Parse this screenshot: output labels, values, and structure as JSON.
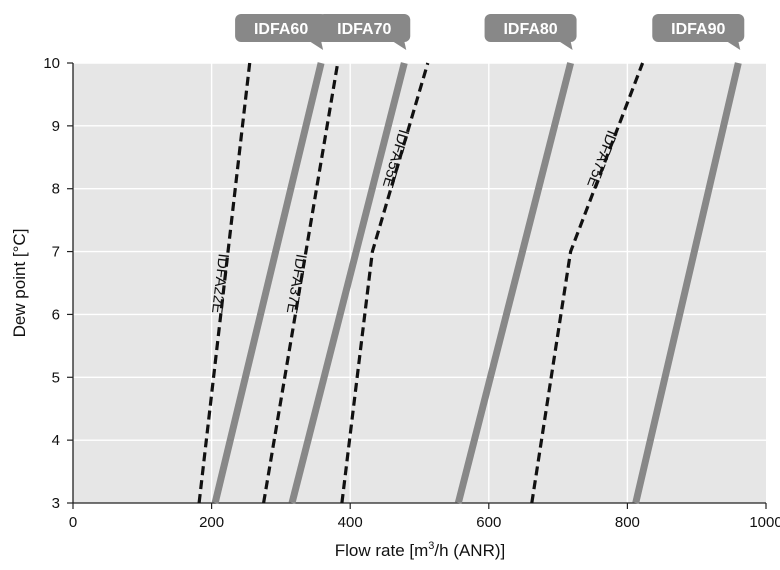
{
  "chart_data": {
    "type": "line",
    "xlabel_prefix": "Flow rate [m",
    "xlabel_sup": "3",
    "xlabel_suffix": "/h (ANR)]",
    "ylabel": "Dew point [°C]",
    "xlim": [
      0,
      1000
    ],
    "ylim": [
      3,
      10
    ],
    "xticks": [
      0,
      200,
      400,
      600,
      800,
      1000
    ],
    "yticks": [
      3,
      4,
      5,
      6,
      7,
      8,
      9,
      10
    ],
    "grid": true,
    "plot_background": "#e6e6e6",
    "solid_color": "#888888",
    "dashed_color": "#111111",
    "series": [
      {
        "name": "IDFA22E",
        "style": "dashed",
        "points": [
          [
            182,
            3
          ],
          [
            255,
            10
          ]
        ]
      },
      {
        "name": "IDFA37E",
        "style": "dashed",
        "points": [
          [
            275,
            3
          ],
          [
            382,
            10
          ]
        ]
      },
      {
        "name": "IDFA55E",
        "style": "dashed",
        "points": [
          [
            388,
            3
          ],
          [
            432,
            7
          ],
          [
            512,
            10
          ]
        ]
      },
      {
        "name": "IDFA75E",
        "style": "dashed",
        "points": [
          [
            662,
            3
          ],
          [
            718,
            7
          ],
          [
            822,
            10
          ]
        ]
      },
      {
        "name": "IDFA60",
        "style": "solid",
        "points": [
          [
            205,
            3
          ],
          [
            358,
            10
          ]
        ]
      },
      {
        "name": "IDFA70",
        "style": "solid",
        "points": [
          [
            316,
            3
          ],
          [
            478,
            10
          ]
        ]
      },
      {
        "name": "IDFA80",
        "style": "solid",
        "points": [
          [
            556,
            3
          ],
          [
            718,
            10
          ]
        ]
      },
      {
        "name": "IDFA90",
        "style": "solid",
        "points": [
          [
            812,
            3
          ],
          [
            960,
            10
          ]
        ]
      }
    ]
  }
}
